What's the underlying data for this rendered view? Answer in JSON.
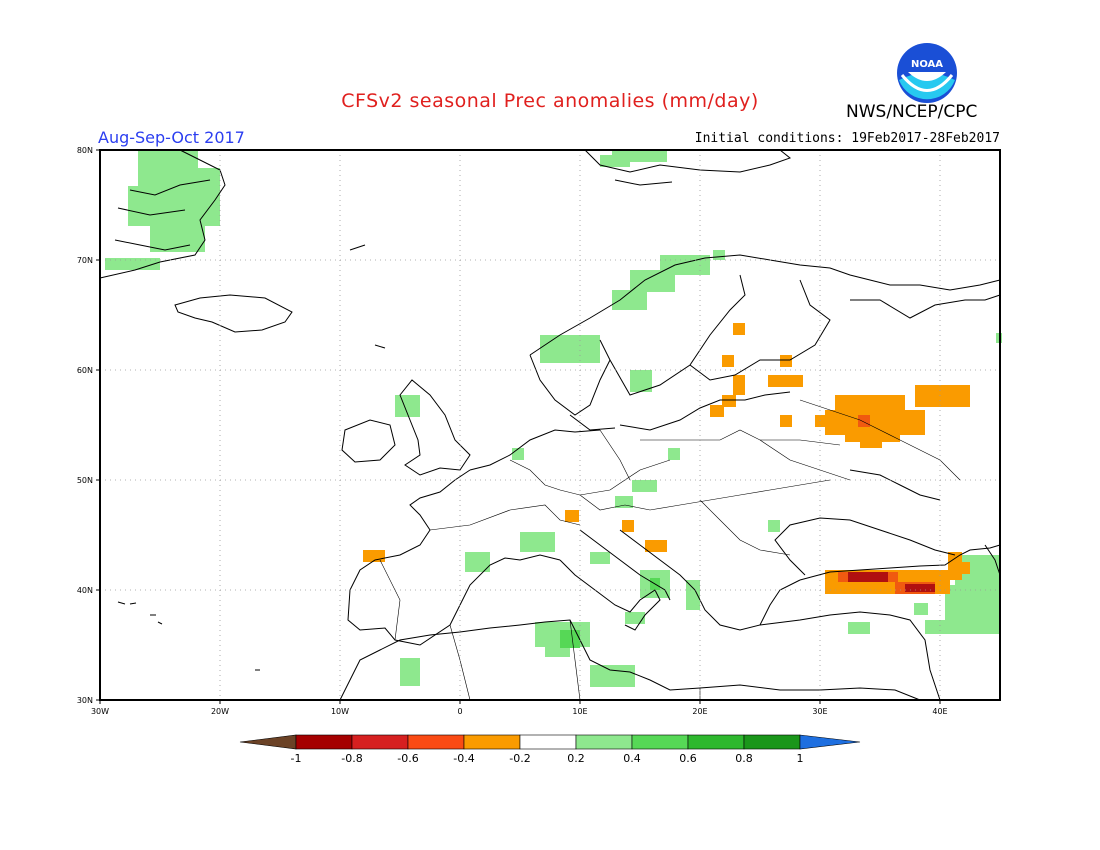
{
  "header": {
    "title": "CFSv2 seasonal Prec anomalies (mm/day)",
    "season": "Aug-Sep-Oct 2017",
    "initial_conditions": "Initial conditions: 19Feb2017-28Feb2017",
    "agency": "NWS/NCEP/CPC",
    "logo_text": "NOAA"
  },
  "map": {
    "lat_labels": [
      "80N",
      "70N",
      "60N",
      "50N",
      "40N",
      "30N"
    ],
    "lon_labels": [
      "30W",
      "20W",
      "10W",
      "0",
      "10E",
      "20E",
      "30E",
      "40E"
    ]
  },
  "colorbar": {
    "labels": [
      "-1",
      "-0.8",
      "-0.6",
      "-0.4",
      "-0.2",
      "0.2",
      "0.4",
      "0.6",
      "0.8",
      "1"
    ],
    "colors": [
      "#6b4226",
      "#a50000",
      "#d62020",
      "#fa4b14",
      "#fa9b00",
      "#ffffff",
      "#8ee88e",
      "#56d856",
      "#2eb82e",
      "#1a961a",
      "#1e6fe0"
    ]
  },
  "anomaly_colors": {
    "light_green": "#8ee88e",
    "green": "#56d856",
    "orange": "#fa9b00",
    "red_orange": "#f05a10",
    "dark_red": "#b01010"
  }
}
